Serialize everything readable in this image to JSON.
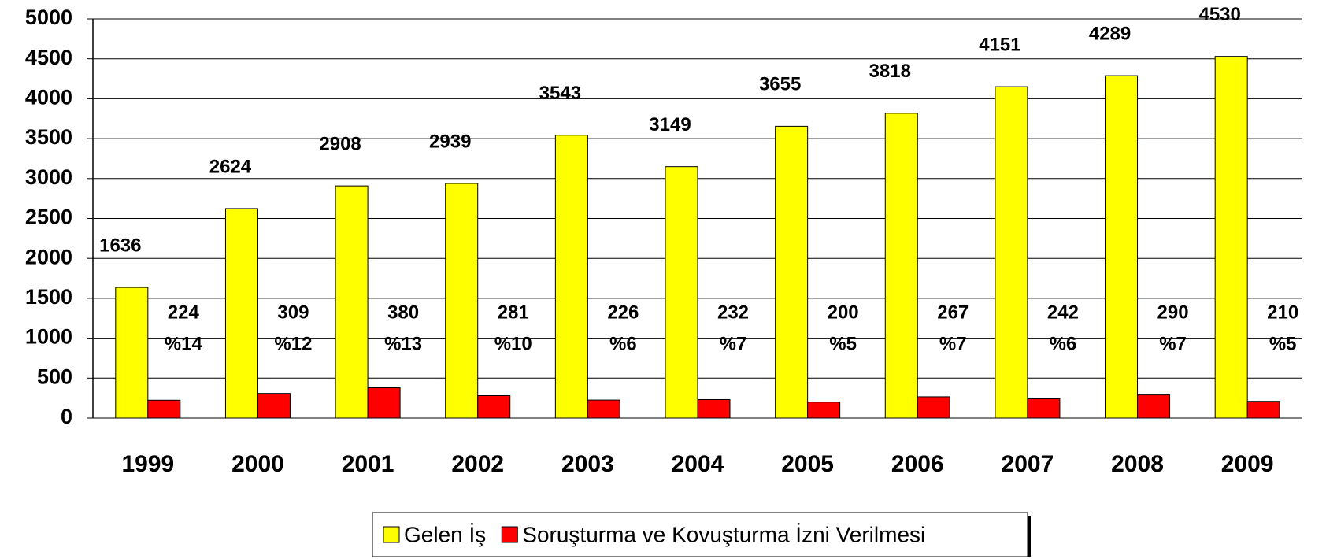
{
  "chart_data": {
    "type": "bar",
    "categories": [
      "1999",
      "2000",
      "2001",
      "2002",
      "2003",
      "2004",
      "2005",
      "2006",
      "2007",
      "2008",
      "2009"
    ],
    "series": [
      {
        "name": "Gelen İş",
        "color": "#ffff00",
        "values": [
          1636,
          2624,
          2908,
          2939,
          3543,
          3149,
          3655,
          3818,
          4151,
          4289,
          4530
        ]
      },
      {
        "name": "Soruşturma ve Kovuşturma İzni Verilmesi",
        "color": "#ff0000",
        "values": [
          224,
          309,
          380,
          281,
          226,
          232,
          200,
          267,
          242,
          290,
          210
        ],
        "percent_labels": [
          "%14",
          "%12",
          "%13",
          "%10",
          "%6",
          "%7",
          "%5",
          "%7",
          "%6",
          "%7",
          "%5"
        ]
      }
    ],
    "ylim": [
      0,
      5000
    ],
    "yticks": [
      0,
      500,
      1000,
      1500,
      2000,
      2500,
      3000,
      3500,
      4000,
      4500,
      5000
    ],
    "grid": true,
    "legend": "bottom"
  }
}
